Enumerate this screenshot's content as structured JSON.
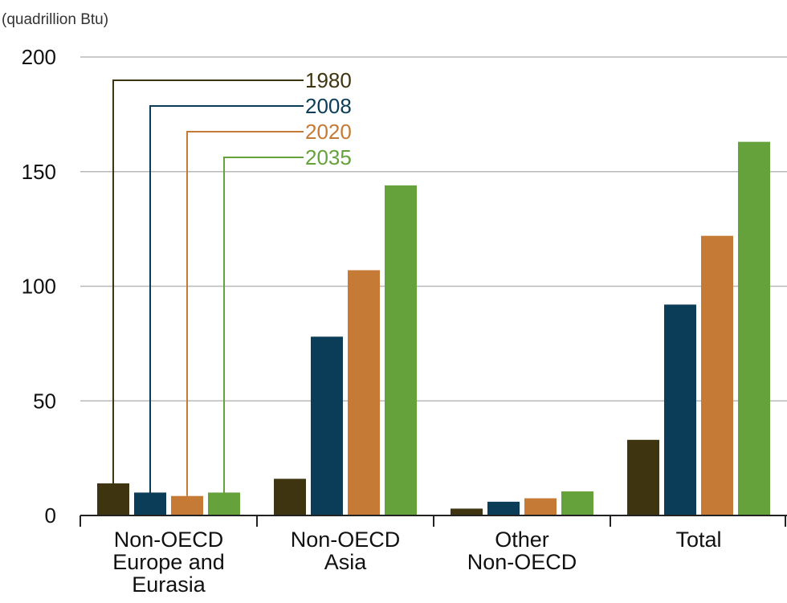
{
  "chart_data": {
    "type": "bar",
    "title": "",
    "ylabel": "(quadrillion Btu)",
    "xlabel": "",
    "ylim": [
      0,
      200
    ],
    "yticks": [
      0,
      50,
      100,
      150,
      200
    ],
    "grid": true,
    "legend_placement": "top-left, leader lines into first category",
    "categories": [
      [
        "Non-OECD",
        "Europe and",
        "Eurasia"
      ],
      [
        "Non-OECD",
        "Asia"
      ],
      [
        "Other",
        "Non-OECD"
      ],
      [
        "Total"
      ]
    ],
    "series": [
      {
        "name": "1980",
        "color": "#3f3410",
        "values": [
          14,
          16,
          3,
          33
        ]
      },
      {
        "name": "2008",
        "color": "#0b3d58",
        "values": [
          10,
          78,
          6,
          92
        ]
      },
      {
        "name": "2020",
        "color": "#c57a35",
        "values": [
          8.5,
          107,
          7.5,
          122
        ]
      },
      {
        "name": "2035",
        "color": "#66a23b",
        "values": [
          10,
          144,
          10.5,
          163
        ]
      }
    ]
  }
}
